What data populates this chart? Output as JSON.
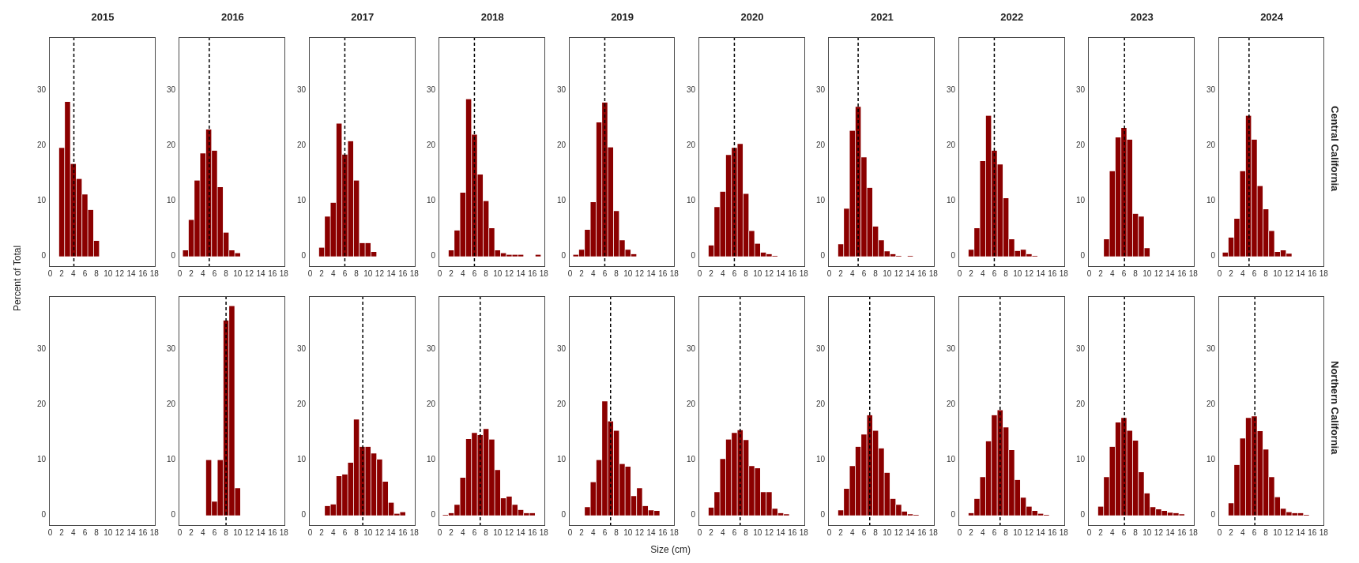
{
  "chart_data": [
    {
      "type": "histogram",
      "title": "2015",
      "ylabel": "Percent of Total",
      "bins": [
        1.5,
        2.5,
        3.5,
        4.5,
        5.5,
        6.5,
        7.5,
        8.5
      ],
      "values": [
        19.6,
        27.9,
        16.7,
        14.0,
        11.2,
        8.4,
        2.8
      ],
      "color": "#8b0000",
      "xlim": [
        -0.2,
        18.2
      ],
      "ylim": [
        -1.9,
        39.6
      ],
      "xticks": [
        0,
        2,
        4,
        6,
        8,
        10,
        12,
        14,
        16,
        18
      ],
      "yticks": [
        0,
        10,
        20,
        30
      ],
      "ref_lines": [
        {
          "axis": "x",
          "value": 4.1,
          "color": "#000000",
          "line_style": "dashed"
        }
      ]
    },
    {
      "type": "histogram",
      "title": "2016",
      "bins": [
        0.5,
        1.5,
        2.5,
        3.5,
        4.5,
        5.5,
        6.5,
        7.5,
        8.5,
        9.5,
        10.5
      ],
      "values": [
        1.1,
        6.6,
        13.7,
        18.6,
        22.9,
        19.1,
        12.5,
        4.3,
        1.1,
        0.6
      ],
      "color": "#8b0000",
      "xlim": [
        -0.2,
        18.2
      ],
      "ylim": [
        -1.9,
        39.6
      ],
      "xticks": [
        0,
        2,
        4,
        6,
        8,
        10,
        12,
        14,
        16,
        18
      ],
      "yticks": [
        0,
        10,
        20,
        30
      ],
      "ref_lines": [
        {
          "axis": "x",
          "value": 5.1,
          "color": "#000000",
          "line_style": "dashed"
        }
      ]
    },
    {
      "type": "histogram",
      "title": "2017",
      "bins": [
        1.5,
        2.5,
        3.5,
        4.5,
        5.5,
        6.5,
        7.5,
        8.5,
        9.5,
        10.5,
        11.5
      ],
      "values": [
        1.6,
        7.2,
        9.7,
        24.0,
        18.4,
        20.8,
        13.7,
        2.4,
        2.4,
        0.8
      ],
      "color": "#8b0000",
      "xlim": [
        -0.2,
        18.2
      ],
      "ylim": [
        -1.9,
        39.6
      ],
      "xticks": [
        0,
        2,
        4,
        6,
        8,
        10,
        12,
        14,
        16,
        18
      ],
      "yticks": [
        0,
        10,
        20,
        30
      ],
      "ref_lines": [
        {
          "axis": "x",
          "value": 6.0,
          "color": "#000000",
          "line_style": "dashed"
        }
      ]
    },
    {
      "type": "histogram",
      "title": "2018",
      "bins": [
        1.5,
        2.5,
        3.5,
        4.5,
        5.5,
        6.5,
        7.5,
        8.5,
        9.5,
        10.5,
        11.5,
        12.5,
        13.5,
        14.5,
        15.5,
        16.5,
        17.5
      ],
      "values": [
        1.1,
        4.7,
        11.5,
        28.4,
        22.0,
        14.8,
        10.0,
        5.1,
        1.1,
        0.6,
        0.3,
        0.3,
        0.3,
        0,
        0,
        0.3
      ],
      "color": "#8b0000",
      "xlim": [
        -0.2,
        18.2
      ],
      "ylim": [
        -1.9,
        39.6
      ],
      "xticks": [
        0,
        2,
        4,
        6,
        8,
        10,
        12,
        14,
        16,
        18
      ],
      "yticks": [
        0,
        10,
        20,
        30
      ],
      "ref_lines": [
        {
          "axis": "x",
          "value": 6.0,
          "color": "#000000",
          "line_style": "dashed"
        }
      ]
    },
    {
      "type": "histogram",
      "title": "2019",
      "bins": [
        0.5,
        1.5,
        2.5,
        3.5,
        4.5,
        5.5,
        6.5,
        7.5,
        8.5,
        9.5,
        10.5,
        11.5
      ],
      "values": [
        0.3,
        1.2,
        4.8,
        9.8,
        24.2,
        27.8,
        19.7,
        8.2,
        2.9,
        1.2,
        0.4
      ],
      "color": "#8b0000",
      "xlim": [
        -0.2,
        18.2
      ],
      "ylim": [
        -1.9,
        39.6
      ],
      "xticks": [
        0,
        2,
        4,
        6,
        8,
        10,
        12,
        14,
        16,
        18
      ],
      "yticks": [
        0,
        10,
        20,
        30
      ],
      "ref_lines": [
        {
          "axis": "x",
          "value": 6.0,
          "color": "#000000",
          "line_style": "dashed"
        }
      ]
    },
    {
      "type": "histogram",
      "title": "2020",
      "bins": [
        1.5,
        2.5,
        3.5,
        4.5,
        5.5,
        6.5,
        7.5,
        8.5,
        9.5,
        10.5,
        11.5,
        12.5,
        13.5
      ],
      "values": [
        2.0,
        8.9,
        11.7,
        18.3,
        19.6,
        20.3,
        11.3,
        4.6,
        2.3,
        0.7,
        0.4,
        0.1
      ],
      "color": "#8b0000",
      "xlim": [
        -0.2,
        18.2
      ],
      "ylim": [
        -1.9,
        39.6
      ],
      "xticks": [
        0,
        2,
        4,
        6,
        8,
        10,
        12,
        14,
        16,
        18
      ],
      "yticks": [
        0,
        10,
        20,
        30
      ],
      "ref_lines": [
        {
          "axis": "x",
          "value": 6.0,
          "color": "#000000",
          "line_style": "dashed"
        }
      ]
    },
    {
      "type": "histogram",
      "title": "2021",
      "bins": [
        1.5,
        2.5,
        3.5,
        4.5,
        5.5,
        6.5,
        7.5,
        8.5,
        9.5,
        10.5,
        11.5,
        12.5,
        13.5,
        14.5
      ],
      "values": [
        2.2,
        8.6,
        22.7,
        27.0,
        17.9,
        12.4,
        5.4,
        2.9,
        0.9,
        0.4,
        0.1,
        0,
        0.1
      ],
      "color": "#8b0000",
      "xlim": [
        -0.2,
        18.2
      ],
      "ylim": [
        -1.9,
        39.6
      ],
      "xticks": [
        0,
        2,
        4,
        6,
        8,
        10,
        12,
        14,
        16,
        18
      ],
      "yticks": [
        0,
        10,
        20,
        30
      ],
      "ref_lines": [
        {
          "axis": "x",
          "value": 5.0,
          "color": "#000000",
          "line_style": "dashed"
        }
      ]
    },
    {
      "type": "histogram",
      "title": "2022",
      "bins": [
        1.5,
        2.5,
        3.5,
        4.5,
        5.5,
        6.5,
        7.5,
        8.5,
        9.5,
        10.5,
        11.5,
        12.5,
        13.5
      ],
      "values": [
        1.2,
        5.1,
        17.2,
        25.4,
        19.1,
        16.6,
        10.5,
        3.1,
        1.0,
        1.2,
        0.4,
        0.1
      ],
      "color": "#8b0000",
      "xlim": [
        -0.2,
        18.2
      ],
      "ylim": [
        -1.9,
        39.6
      ],
      "xticks": [
        0,
        2,
        4,
        6,
        8,
        10,
        12,
        14,
        16,
        18
      ],
      "yticks": [
        0,
        10,
        20,
        30
      ],
      "ref_lines": [
        {
          "axis": "x",
          "value": 6.0,
          "color": "#000000",
          "line_style": "dashed"
        }
      ]
    },
    {
      "type": "histogram",
      "title": "2023",
      "bins": [
        2.5,
        3.5,
        4.5,
        5.5,
        6.5,
        7.5,
        8.5,
        9.5,
        10.5
      ],
      "values": [
        3.1,
        15.4,
        21.5,
        23.2,
        21.1,
        7.7,
        7.2,
        1.5
      ],
      "color": "#8b0000",
      "xlim": [
        -0.2,
        18.2
      ],
      "ylim": [
        -1.9,
        39.6
      ],
      "xticks": [
        0,
        2,
        4,
        6,
        8,
        10,
        12,
        14,
        16,
        18
      ],
      "yticks": [
        0,
        10,
        20,
        30
      ],
      "ref_lines": [
        {
          "axis": "x",
          "value": 6.1,
          "color": "#000000",
          "line_style": "dashed"
        }
      ]
    },
    {
      "type": "histogram",
      "title": "2024",
      "annotations": [
        "Central California"
      ],
      "bins": [
        0.5,
        1.5,
        2.5,
        3.5,
        4.5,
        5.5,
        6.5,
        7.5,
        8.5,
        9.5,
        10.5,
        11.5,
        12.5
      ],
      "values": [
        0.7,
        3.4,
        6.8,
        15.4,
        25.4,
        21.1,
        12.7,
        8.5,
        4.6,
        0.8,
        1.1,
        0.5
      ],
      "color": "#8b0000",
      "xlim": [
        -0.2,
        18.2
      ],
      "ylim": [
        -1.9,
        39.6
      ],
      "xticks": [
        0,
        2,
        4,
        6,
        8,
        10,
        12,
        14,
        16,
        18
      ],
      "yticks": [
        0,
        10,
        20,
        30
      ],
      "ref_lines": [
        {
          "axis": "x",
          "value": 5.1,
          "color": "#000000",
          "line_style": "dashed"
        }
      ]
    },
    {
      "type": "histogram",
      "color": "#8b0000",
      "xlim": [
        -0.2,
        18.2
      ],
      "ylim": [
        -1.9,
        39.6
      ],
      "xticks": [
        0,
        2,
        4,
        6,
        8,
        10,
        12,
        14,
        16,
        18
      ],
      "yticks": [
        0,
        10,
        20,
        30
      ]
    },
    {
      "type": "histogram",
      "bins": [
        4.5,
        5.5,
        6.5,
        7.5,
        8.5,
        9.5,
        10.5
      ],
      "values": [
        10.0,
        2.5,
        10.0,
        35.2,
        37.8,
        4.9
      ],
      "color": "#8b0000",
      "xlim": [
        -0.2,
        18.2
      ],
      "ylim": [
        -1.9,
        39.6
      ],
      "xticks": [
        0,
        2,
        4,
        6,
        8,
        10,
        12,
        14,
        16,
        18
      ],
      "yticks": [
        0,
        10,
        20,
        30
      ],
      "ref_lines": [
        {
          "axis": "x",
          "value": 8.0,
          "color": "#000000",
          "line_style": "dashed"
        }
      ]
    },
    {
      "type": "histogram",
      "bins": [
        2.5,
        3.5,
        4.5,
        5.5,
        6.5,
        7.5,
        8.5,
        9.5,
        10.5,
        11.5,
        12.5,
        13.5,
        14.5,
        15.5,
        16.5
      ],
      "values": [
        1.7,
        2.0,
        7.1,
        7.4,
        9.5,
        17.3,
        12.4,
        12.4,
        11.2,
        10.1,
        6.1,
        2.3,
        0.3,
        0.6
      ],
      "color": "#8b0000",
      "xlim": [
        -0.2,
        18.2
      ],
      "ylim": [
        -1.9,
        39.6
      ],
      "xticks": [
        0,
        2,
        4,
        6,
        8,
        10,
        12,
        14,
        16,
        18
      ],
      "yticks": [
        0,
        10,
        20,
        30
      ],
      "ref_lines": [
        {
          "axis": "x",
          "value": 9.1,
          "color": "#000000",
          "line_style": "dashed"
        }
      ]
    },
    {
      "type": "histogram",
      "bins": [
        0.5,
        1.5,
        2.5,
        3.5,
        4.5,
        5.5,
        6.5,
        7.5,
        8.5,
        9.5,
        10.5,
        11.5,
        12.5,
        13.5,
        14.5,
        15.5,
        16.5
      ],
      "values": [
        0.1,
        0.4,
        1.9,
        6.8,
        13.8,
        14.9,
        14.5,
        15.6,
        13.7,
        8.2,
        3.1,
        3.4,
        1.9,
        1.0,
        0.4,
        0.4
      ],
      "color": "#8b0000",
      "xlim": [
        -0.2,
        18.2
      ],
      "ylim": [
        -1.9,
        39.6
      ],
      "xticks": [
        0,
        2,
        4,
        6,
        8,
        10,
        12,
        14,
        16,
        18
      ],
      "yticks": [
        0,
        10,
        20,
        30
      ],
      "ref_lines": [
        {
          "axis": "x",
          "value": 7.0,
          "color": "#000000",
          "line_style": "dashed"
        }
      ]
    },
    {
      "type": "histogram",
      "xlabel": "Size (cm)",
      "bins": [
        2.5,
        3.5,
        4.5,
        5.5,
        6.5,
        7.5,
        8.5,
        9.5,
        10.5,
        11.5,
        12.5,
        13.5,
        14.5,
        15.5
      ],
      "values": [
        1.5,
        6.0,
        10.0,
        20.6,
        17.0,
        15.3,
        9.3,
        8.8,
        3.5,
        4.9,
        1.7,
        0.9,
        0.8
      ],
      "color": "#8b0000",
      "xlim": [
        -0.2,
        18.2
      ],
      "ylim": [
        -1.9,
        39.6
      ],
      "xticks": [
        0,
        2,
        4,
        6,
        8,
        10,
        12,
        14,
        16,
        18
      ],
      "yticks": [
        0,
        10,
        20,
        30
      ],
      "ref_lines": [
        {
          "axis": "x",
          "value": 7.0,
          "color": "#000000",
          "line_style": "dashed"
        }
      ]
    },
    {
      "type": "histogram",
      "bins": [
        1.5,
        2.5,
        3.5,
        4.5,
        5.5,
        6.5,
        7.5,
        8.5,
        9.5,
        10.5,
        11.5,
        12.5,
        13.5,
        14.5,
        15.5
      ],
      "values": [
        1.4,
        4.2,
        10.2,
        13.7,
        14.9,
        15.4,
        13.6,
        8.9,
        8.5,
        4.2,
        4.2,
        1.2,
        0.4,
        0.2
      ],
      "color": "#8b0000",
      "xlim": [
        -0.2,
        18.2
      ],
      "ylim": [
        -1.9,
        39.6
      ],
      "xticks": [
        0,
        2,
        4,
        6,
        8,
        10,
        12,
        14,
        16,
        18
      ],
      "yticks": [
        0,
        10,
        20,
        30
      ],
      "ref_lines": [
        {
          "axis": "x",
          "value": 7.0,
          "color": "#000000",
          "line_style": "dashed"
        }
      ]
    },
    {
      "type": "histogram",
      "bins": [
        1.5,
        2.5,
        3.5,
        4.5,
        5.5,
        6.5,
        7.5,
        8.5,
        9.5,
        10.5,
        11.5,
        12.5,
        13.5,
        14.5,
        15.5
      ],
      "values": [
        0.9,
        4.8,
        8.9,
        12.4,
        14.6,
        18.1,
        15.3,
        12.1,
        7.7,
        3.0,
        1.9,
        0.7,
        0.2,
        0.1
      ],
      "color": "#8b0000",
      "xlim": [
        -0.2,
        18.2
      ],
      "ylim": [
        -1.9,
        39.6
      ],
      "xticks": [
        0,
        2,
        4,
        6,
        8,
        10,
        12,
        14,
        16,
        18
      ],
      "yticks": [
        0,
        10,
        20,
        30
      ],
      "ref_lines": [
        {
          "axis": "x",
          "value": 7.0,
          "color": "#000000",
          "line_style": "dashed"
        }
      ]
    },
    {
      "type": "histogram",
      "bins": [
        1.5,
        2.5,
        3.5,
        4.5,
        5.5,
        6.5,
        7.5,
        8.5,
        9.5,
        10.5,
        11.5,
        12.5,
        13.5,
        14.5,
        15.5
      ],
      "values": [
        0.4,
        3.0,
        6.9,
        13.4,
        18.1,
        19.0,
        15.9,
        11.8,
        6.4,
        3.2,
        1.6,
        0.8,
        0.3,
        0.1
      ],
      "color": "#8b0000",
      "xlim": [
        -0.2,
        18.2
      ],
      "ylim": [
        -1.9,
        39.6
      ],
      "xticks": [
        0,
        2,
        4,
        6,
        8,
        10,
        12,
        14,
        16,
        18
      ],
      "yticks": [
        0,
        10,
        20,
        30
      ],
      "ref_lines": [
        {
          "axis": "x",
          "value": 7.0,
          "color": "#000000",
          "line_style": "dashed"
        }
      ]
    },
    {
      "type": "histogram",
      "bins": [
        1.5,
        2.5,
        3.5,
        4.5,
        5.5,
        6.5,
        7.5,
        8.5,
        9.5,
        10.5,
        11.5,
        12.5,
        13.5,
        14.5,
        15.5,
        16.5
      ],
      "values": [
        1.6,
        6.9,
        12.4,
        16.8,
        17.6,
        15.3,
        13.5,
        7.8,
        4.0,
        1.5,
        1.1,
        0.8,
        0.5,
        0.4,
        0.2
      ],
      "color": "#8b0000",
      "xlim": [
        -0.2,
        18.2
      ],
      "ylim": [
        -1.9,
        39.6
      ],
      "xticks": [
        0,
        2,
        4,
        6,
        8,
        10,
        12,
        14,
        16,
        18
      ],
      "yticks": [
        0,
        10,
        20,
        30
      ],
      "ref_lines": [
        {
          "axis": "x",
          "value": 6.1,
          "color": "#000000",
          "line_style": "dashed"
        }
      ]
    },
    {
      "type": "histogram",
      "annotations": [
        "Northern California"
      ],
      "bins": [
        1.5,
        2.5,
        3.5,
        4.5,
        5.5,
        6.5,
        7.5,
        8.5,
        9.5,
        10.5,
        11.5,
        12.5,
        13.5,
        14.5,
        15.5
      ],
      "values": [
        2.2,
        9.1,
        13.9,
        17.6,
        17.9,
        15.2,
        11.9,
        6.9,
        3.3,
        1.2,
        0.6,
        0.4,
        0.4,
        0.1
      ],
      "color": "#8b0000",
      "xlim": [
        -0.2,
        18.2
      ],
      "ylim": [
        -1.9,
        39.6
      ],
      "xticks": [
        0,
        2,
        4,
        6,
        8,
        10,
        12,
        14,
        16,
        18
      ],
      "yticks": [
        0,
        10,
        20,
        30
      ],
      "ref_lines": [
        {
          "axis": "x",
          "value": 6.1,
          "color": "#000000",
          "line_style": "dashed"
        }
      ]
    }
  ]
}
